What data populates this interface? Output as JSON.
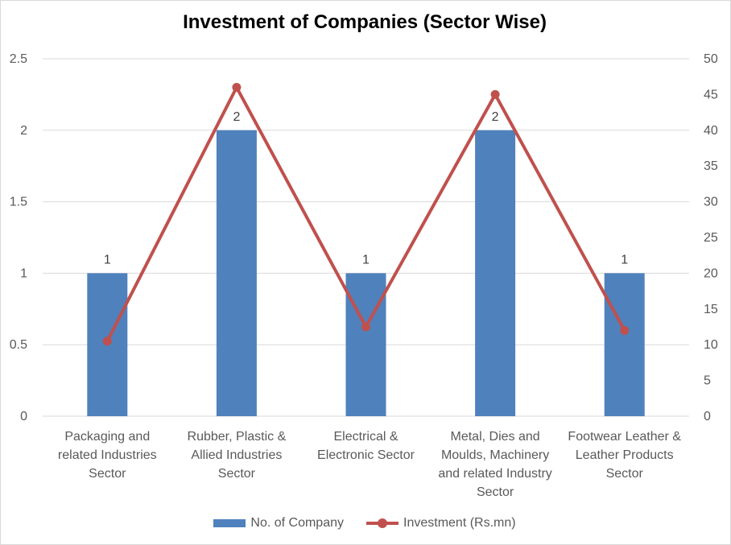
{
  "chart_data": {
    "type": "bar",
    "title": "Investment of Companies (Sector Wise)",
    "categories": [
      [
        "Packaging and",
        "related Industries",
        "Sector"
      ],
      [
        "Rubber, Plastic &",
        "Allied Industries",
        "Sector"
      ],
      [
        "Electrical &",
        "Electronic Sector"
      ],
      [
        "Metal, Dies and",
        "Moulds, Machinery",
        "and related Industry",
        "Sector"
      ],
      [
        "Footwear Leather &",
        "Leather Products",
        "Sector"
      ]
    ],
    "series": [
      {
        "name": "No. of Company",
        "type": "bar",
        "axis": "left",
        "values": [
          1,
          2,
          1,
          2,
          1
        ],
        "data_labels": [
          "1",
          "2",
          "1",
          "2",
          "1"
        ],
        "color": "#4f81bd"
      },
      {
        "name": "Investment (Rs.mn)",
        "type": "line",
        "axis": "right",
        "values": [
          10.5,
          46,
          12.5,
          45,
          12
        ],
        "color": "#c0504d"
      }
    ],
    "y_left": {
      "min": 0,
      "max": 2.5,
      "ticks": [
        "0",
        "0.5",
        "1",
        "1.5",
        "2",
        "2.5"
      ]
    },
    "y_right": {
      "min": 0,
      "max": 50,
      "ticks": [
        "0",
        "5",
        "10",
        "15",
        "20",
        "25",
        "30",
        "35",
        "40",
        "45",
        "50"
      ]
    },
    "grid": true,
    "legend_position": "bottom"
  }
}
